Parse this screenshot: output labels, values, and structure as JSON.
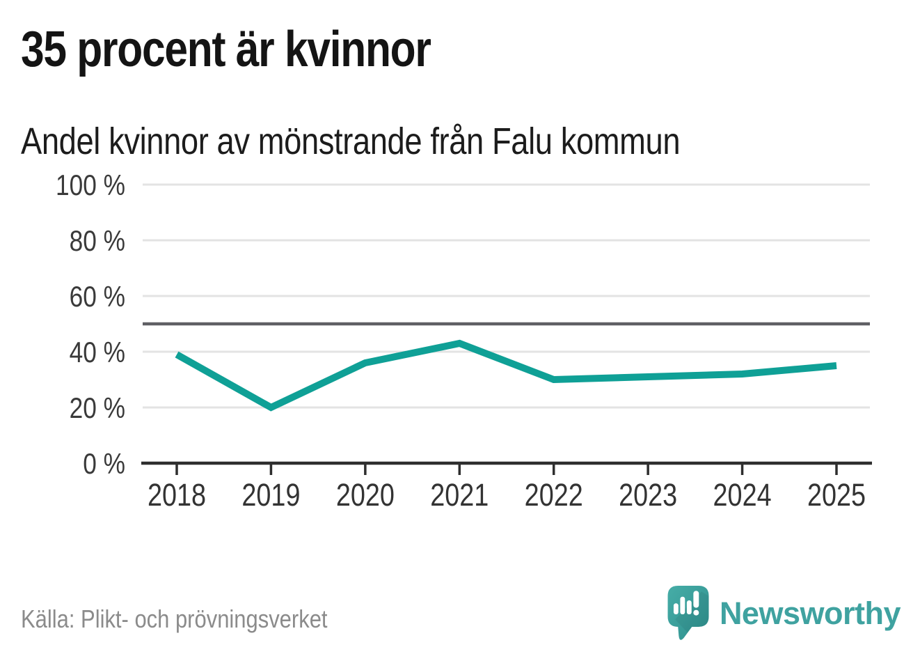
{
  "header": {
    "title": "35 procent är kvinnor"
  },
  "chart": {
    "subtitle": "Andel kvinnor av mönstrande från Falu kommun"
  },
  "chart_data": {
    "type": "line",
    "title": "35 procent är kvinnor",
    "subtitle": "Andel kvinnor av mönstrande från Falu kommun",
    "x": [
      "2018",
      "2019",
      "2020",
      "2021",
      "2022",
      "2023",
      "2024",
      "2025"
    ],
    "series": [
      {
        "name": "Andel kvinnor av mönstrande",
        "values": [
          39,
          20,
          36,
          43,
          30,
          31,
          32,
          35
        ],
        "color": "#0FA096"
      }
    ],
    "xlabel": "",
    "ylabel": "",
    "ylim": [
      0,
      100
    ],
    "y_ticks": [
      {
        "value": 100,
        "label": "100 %"
      },
      {
        "value": 80,
        "label": "80 %"
      },
      {
        "value": 60,
        "label": "60 %"
      },
      {
        "value": 40,
        "label": "40 %"
      },
      {
        "value": 20,
        "label": "20 %"
      },
      {
        "value": 0,
        "label": "0 %"
      }
    ],
    "reference_line": {
      "value": 50
    },
    "grid": true,
    "legend": "none"
  },
  "footer": {
    "source": "Källa: Plikt- och prövningsverket"
  },
  "branding": {
    "logo_text": "Newsworthy",
    "logo_icon": "newsworthy-speech-bubble-chart-icon"
  },
  "colors": {
    "line": "#0FA096",
    "reference_line": "#5F5F64",
    "grid": "#E3E3E3",
    "axis": "#2E2E2E",
    "title_text": "#141414",
    "subtitle_text": "#1C1C1C",
    "tick_text": "#3A3A3A",
    "source_text": "#8B8B8B",
    "brand": "#3FA2A0",
    "logo_fill_top": "#44ACA6",
    "logo_fill_bottom": "#2E8F8D"
  }
}
